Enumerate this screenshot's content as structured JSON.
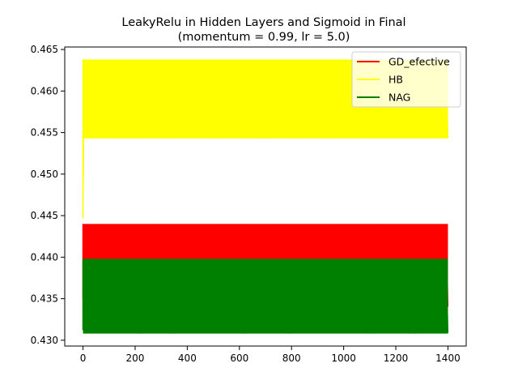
{
  "chart_data": {
    "type": "line",
    "title": "LeakyRelu in Hidden Layers and Sigmoid in Final",
    "subtitle": "(momentum = 0.99, lr = 5.0)",
    "xlabel": "",
    "ylabel": "",
    "xlim": [
      -70,
      1470
    ],
    "ylim": [
      0.4293,
      0.4653
    ],
    "xticks": [
      0,
      200,
      400,
      600,
      800,
      1000,
      1200,
      1400
    ],
    "xtick_labels": [
      "0",
      "200",
      "400",
      "600",
      "800",
      "1000",
      "1200",
      "1400"
    ],
    "yticks": [
      0.43,
      0.435,
      0.44,
      0.445,
      0.45,
      0.455,
      0.46,
      0.465
    ],
    "ytick_labels": [
      "0.430",
      "0.435",
      "0.440",
      "0.445",
      "0.450",
      "0.455",
      "0.460",
      "0.465"
    ],
    "grid": false,
    "legend_position": "top-right",
    "series": [
      {
        "name": "GD_efective",
        "color": "#ff0000",
        "x_range": [
          0,
          1400
        ],
        "oscillation_band": [
          0.434,
          0.444
        ],
        "start_value": 0.435
      },
      {
        "name": "HB",
        "color": "#ffff00",
        "x_range": [
          0,
          1400
        ],
        "oscillation_band": [
          0.4543,
          0.4638
        ],
        "start_value": 0.4447
      },
      {
        "name": "NAG",
        "color": "#008000",
        "x_range": [
          0,
          1400
        ],
        "oscillation_band": [
          0.4308,
          0.4398
        ],
        "start_value": 0.4312
      }
    ]
  }
}
